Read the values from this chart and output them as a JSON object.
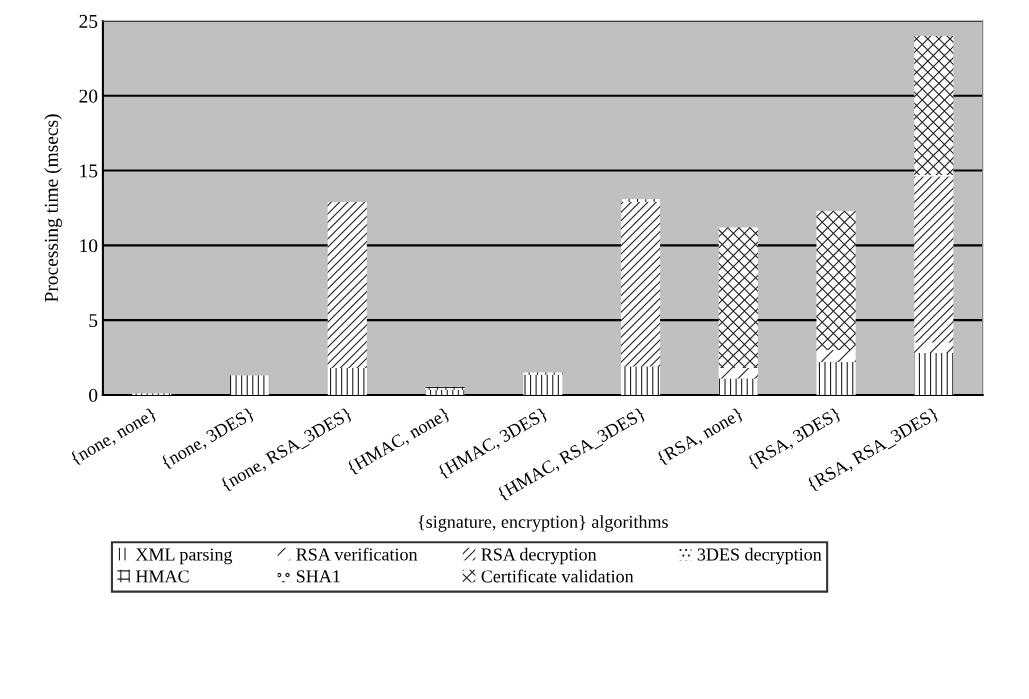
{
  "chart_data": {
    "type": "bar",
    "stacked": true,
    "xlabel": "{signature, encryption} algorithms",
    "ylabel": "Processing time (msecs)",
    "categories": [
      "{none, none}",
      "{none, 3DES}",
      "{none, RSA_3DES}",
      "{HMAC, none}",
      "{HMAC, 3DES}",
      "{HMAC, RSA_3DES}",
      "{RSA, none}",
      "{RSA, 3DES}",
      "{RSA, RSA_3DES}"
    ],
    "series": [
      {
        "name": "XML parsing",
        "color": "#ffffff",
        "values": [
          0.1,
          1.3,
          1.8,
          0.35,
          1.35,
          1.9,
          1.1,
          2.2,
          2.8
        ]
      },
      {
        "name": "RSA verification",
        "color": "#ffffff",
        "values": [
          null,
          null,
          null,
          null,
          null,
          null,
          0.7,
          0.8,
          0.7
        ]
      },
      {
        "name": "RSA decryption",
        "color": "#ffffff",
        "values": [
          null,
          null,
          11.1,
          null,
          null,
          11.0,
          null,
          null,
          11.1
        ]
      },
      {
        "name": "3DES decryption",
        "color": "#ffffff",
        "values": [
          null,
          null,
          null,
          null,
          null,
          null,
          null,
          null,
          0.1
        ]
      },
      {
        "name": "HMAC",
        "color": "#ffffff",
        "values": [
          null,
          null,
          null,
          0.2,
          0.15,
          0.2,
          null,
          null,
          null
        ]
      },
      {
        "name": "SHA1",
        "color": "#ffffff",
        "values": [
          null,
          null,
          null,
          null,
          null,
          null,
          null,
          null,
          null
        ]
      },
      {
        "name": "Certificate validation",
        "color": "#ffffff",
        "values": [
          null,
          null,
          null,
          null,
          null,
          null,
          9.4,
          9.3,
          9.3
        ]
      }
    ],
    "ylim": [
      0,
      25
    ],
    "yticks": [
      0,
      5,
      10,
      15,
      20,
      25
    ],
    "grid": "y",
    "legend": "bottom"
  }
}
